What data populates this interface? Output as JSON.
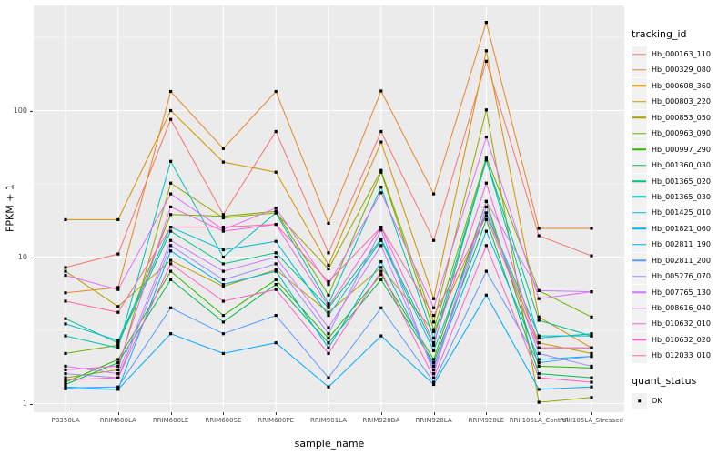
{
  "figure": {
    "background": "#FFFFFF",
    "panel_background": "#EBEBEB",
    "grid_color": "#FFFFFF",
    "point_color": "#000000"
  },
  "axes": {
    "x_title": "sample_name",
    "y_title": "FPKM + 1",
    "y_ticks": [
      {
        "label": "100",
        "value": 100
      },
      {
        "label": "10",
        "value": 10
      },
      {
        "label": "1",
        "value": 1
      }
    ]
  },
  "legend": {
    "title": "tracking_id",
    "quant_title": "quant_status",
    "quant_entries": [
      {
        "label": "OK"
      }
    ]
  },
  "chart_data": {
    "type": "line",
    "title": "",
    "xlabel": "sample_name",
    "ylabel": "FPKM + 1",
    "yscale": "log10",
    "ylim": [
      0.87,
      520
    ],
    "y_major": [
      1,
      10,
      100
    ],
    "y_minor": [
      3.162,
      31.62,
      316.2
    ],
    "grid": true,
    "legend_position": "right",
    "point_marker": "filled-square",
    "point_status": "OK",
    "categories": [
      "PB350LA",
      "RRIM600LA",
      "RRIM600LE",
      "RRIM600SE",
      "RRIM600PE",
      "RRIM901LA",
      "RRIM928BA",
      "RRIM928LA",
      "RRIM928LE",
      "RRII105LA_Control",
      "RRII105LA_Stressed"
    ],
    "series": [
      {
        "name": "Hb_000163_110",
        "color": "#F8766D",
        "values": [
          8.5,
          10.5,
          87,
          19.5,
          72,
          10.7,
          72,
          13,
          217,
          14,
          10.2
        ]
      },
      {
        "name": "Hb_000329_080",
        "color": "#E88526",
        "values": [
          5.7,
          6.2,
          135,
          55,
          135,
          17,
          136,
          27,
          400,
          15.7,
          15.7
        ]
      },
      {
        "name": "Hb_000608_360",
        "color": "#D39200",
        "values": [
          18,
          18,
          100,
          44.5,
          38,
          8.8,
          61,
          5.2,
          256,
          3.9,
          2.4
        ]
      },
      {
        "name": "Hb_000803_220",
        "color": "#BB9D00",
        "values": [
          8.0,
          4.6,
          9.5,
          6.3,
          8.2,
          4.2,
          8.5,
          3.1,
          20,
          2.6,
          2.2
        ]
      },
      {
        "name": "Hb_000853_050",
        "color": "#9CA700",
        "values": [
          1.5,
          1.7,
          32,
          18.5,
          20,
          8.3,
          39,
          3.6,
          101,
          1.02,
          1.1
        ]
      },
      {
        "name": "Hb_000963_090",
        "color": "#6FB000",
        "values": [
          2.2,
          2.5,
          19.5,
          19,
          20.5,
          5.5,
          38,
          3.2,
          48,
          5.9,
          3.9
        ]
      },
      {
        "name": "Hb_000997_290",
        "color": "#2FB600",
        "values": [
          1.4,
          2.0,
          8.0,
          4.0,
          7.0,
          2.8,
          7.6,
          2.0,
          24,
          1.8,
          1.75
        ]
      },
      {
        "name": "Hb_001360_030",
        "color": "#00BC51",
        "values": [
          1.35,
          1.9,
          7.0,
          3.6,
          6.5,
          2.6,
          7.0,
          1.9,
          18,
          1.6,
          1.5
        ]
      },
      {
        "name": "Hb_001365_020",
        "color": "#00C087",
        "values": [
          3.8,
          2.6,
          15,
          9.0,
          10.7,
          4.5,
          13.3,
          2.5,
          46,
          3.7,
          2.9
        ]
      },
      {
        "name": "Hb_001365_030",
        "color": "#00C0B2",
        "values": [
          2.9,
          2.4,
          45,
          10,
          20,
          4.8,
          30,
          2.8,
          46,
          2.8,
          3.0
        ]
      },
      {
        "name": "Hb_001425_010",
        "color": "#00BDD1",
        "values": [
          3.5,
          2.7,
          16,
          11.2,
          12.8,
          4.0,
          13,
          2.3,
          20,
          2.9,
          2.9
        ]
      },
      {
        "name": "Hb_001821_060",
        "color": "#00B5EC",
        "values": [
          1.3,
          1.25,
          11,
          6.5,
          8.0,
          2.4,
          9.3,
          1.8,
          15,
          2.0,
          2.1
        ]
      },
      {
        "name": "Hb_002811_190",
        "color": "#00A9FF",
        "values": [
          1.26,
          1.25,
          3.0,
          2.2,
          2.6,
          1.3,
          2.9,
          1.35,
          5.5,
          1.25,
          1.3
        ]
      },
      {
        "name": "Hb_002811_200",
        "color": "#5B9DFF",
        "values": [
          1.28,
          1.3,
          4.5,
          3.0,
          4.0,
          1.5,
          4.5,
          1.4,
          8.0,
          1.9,
          2.1
        ]
      },
      {
        "name": "Hb_005276_070",
        "color": "#9C8DFF",
        "values": [
          1.6,
          1.5,
          12,
          7.0,
          9.0,
          3.0,
          15.3,
          1.6,
          22,
          2.2,
          1.8
        ]
      },
      {
        "name": "Hb_007765_130",
        "color": "#CD79FF",
        "values": [
          1.8,
          1.6,
          13,
          8.0,
          10,
          3.3,
          12,
          1.7,
          24,
          5.9,
          5.8
        ]
      },
      {
        "name": "Hb_008616_040",
        "color": "#E36EF6",
        "values": [
          7.5,
          6.0,
          27,
          15.4,
          21.6,
          6.5,
          27.5,
          4.5,
          66,
          5.2,
          5.8
        ]
      },
      {
        "name": "Hb_010632_010",
        "color": "#F163E0",
        "values": [
          1.7,
          1.8,
          22,
          15,
          16.7,
          4.6,
          16,
          2.6,
          32,
          2.4,
          2.4
        ]
      },
      {
        "name": "Hb_010632_020",
        "color": "#FF61C7",
        "values": [
          1.45,
          1.5,
          9.0,
          5.0,
          6.0,
          2.2,
          8.0,
          1.5,
          12,
          1.5,
          1.4
        ]
      },
      {
        "name": "Hb_012033_010",
        "color": "#FF68A1",
        "values": [
          5.0,
          4.2,
          16,
          16,
          16.7,
          6.8,
          16,
          4.0,
          19,
          2.4,
          2.4
        ]
      }
    ]
  }
}
